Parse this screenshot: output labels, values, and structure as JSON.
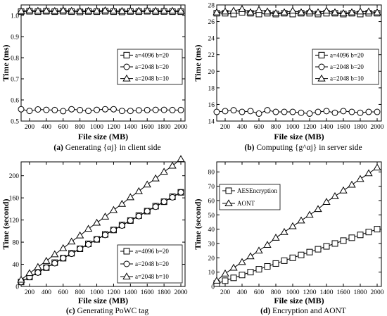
{
  "chart_data": [
    {
      "type": "line",
      "caption_letter": "(a)",
      "caption_text": "Generating {αj} in client side",
      "xlabel": "File size (MB)",
      "ylabel": "Time (ms)",
      "xlim": [
        100,
        2050
      ],
      "ylim": [
        0.5,
        1.05
      ],
      "xticks": [
        200,
        400,
        600,
        800,
        1000,
        1200,
        1400,
        1600,
        1800,
        2000
      ],
      "yticks": [
        0.5,
        0.6,
        0.7,
        0.8,
        0.9,
        1.0
      ],
      "yticklabels": [
        "0.5",
        "0.6",
        "0.7",
        "0.8",
        "0.9",
        "1.0"
      ],
      "legend_position": "center-right",
      "x": [
        100,
        200,
        300,
        400,
        500,
        600,
        700,
        800,
        900,
        1000,
        1100,
        1200,
        1300,
        1400,
        1500,
        1600,
        1700,
        1800,
        1900,
        2000
      ],
      "series": [
        {
          "name": "a=4096 b=20",
          "marker": "square",
          "values": [
            1.018,
            1.02,
            1.018,
            1.02,
            1.018,
            1.02,
            1.018,
            1.017,
            1.019,
            1.018,
            1.02,
            1.018,
            1.017,
            1.019,
            1.018,
            1.02,
            1.018,
            1.019,
            1.018,
            1.018
          ]
        },
        {
          "name": "a=2048 b=20",
          "marker": "circle",
          "values": [
            0.556,
            0.548,
            0.555,
            0.553,
            0.552,
            0.547,
            0.556,
            0.552,
            0.548,
            0.553,
            0.556,
            0.556,
            0.548,
            0.548,
            0.551,
            0.552,
            0.553,
            0.553,
            0.552,
            0.552
          ]
        },
        {
          "name": "a=2048 b=10",
          "marker": "triangle",
          "values": [
            1.021,
            1.024,
            1.022,
            1.023,
            1.021,
            1.024,
            1.022,
            1.021,
            1.022,
            1.022,
            1.024,
            1.022,
            1.021,
            1.022,
            1.022,
            1.023,
            1.022,
            1.022,
            1.022,
            1.022
          ]
        }
      ]
    },
    {
      "type": "line",
      "caption_letter": "(b)",
      "caption_text": "Computing {g^αj} in server side",
      "xlabel": "File size (MB)",
      "ylabel": "Time (ms)",
      "xlim": [
        100,
        2050
      ],
      "ylim": [
        14,
        28
      ],
      "xticks": [
        200,
        400,
        600,
        800,
        1000,
        1200,
        1400,
        1600,
        1800,
        2000
      ],
      "yticks": [
        14,
        16,
        18,
        20,
        22,
        24,
        26,
        28
      ],
      "yticklabels": [
        "14",
        "16",
        "18",
        "20",
        "22",
        "24",
        "26",
        "28"
      ],
      "legend_position": "center-right",
      "x": [
        100,
        200,
        300,
        400,
        500,
        600,
        700,
        800,
        900,
        1000,
        1100,
        1200,
        1300,
        1400,
        1500,
        1600,
        1700,
        1800,
        1900,
        2000
      ],
      "series": [
        {
          "name": "a=4096 b=20",
          "marker": "square",
          "values": [
            27.0,
            27.0,
            26.9,
            27.1,
            27.0,
            26.9,
            27.0,
            26.9,
            27.0,
            26.9,
            27.0,
            27.0,
            26.9,
            27.0,
            27.0,
            26.9,
            27.0,
            26.9,
            27.0,
            27.0
          ]
        },
        {
          "name": "a=2048 b=20",
          "marker": "circle",
          "values": [
            15.1,
            15.2,
            15.3,
            15.1,
            15.2,
            14.9,
            15.3,
            15.1,
            15.1,
            15.1,
            15.0,
            14.9,
            15.1,
            15.2,
            15.0,
            15.2,
            15.1,
            15.0,
            15.1,
            15.1
          ]
        },
        {
          "name": "a=2048 b=10",
          "marker": "triangle",
          "values": [
            27.1,
            27.2,
            27.3,
            27.5,
            27.1,
            27.4,
            27.2,
            27.0,
            27.1,
            27.3,
            27.1,
            27.2,
            27.1,
            27.3,
            27.1,
            27.0,
            27.1,
            27.2,
            27.2,
            27.1
          ]
        }
      ]
    },
    {
      "type": "line",
      "caption_letter": "(c)",
      "caption_text": "Generating PoWC tag",
      "xlabel": "File size (MB)",
      "ylabel": "Time (second)",
      "xlim": [
        100,
        2050
      ],
      "ylim": [
        0,
        225
      ],
      "xticks": [
        200,
        400,
        600,
        800,
        1000,
        1200,
        1400,
        1600,
        1800,
        2000
      ],
      "yticks": [
        0,
        40,
        80,
        120,
        160,
        200
      ],
      "yticklabels": [
        "0",
        "40",
        "80",
        "120",
        "160",
        "200"
      ],
      "legend_position": "bottom-right",
      "x": [
        100,
        200,
        300,
        400,
        500,
        600,
        700,
        800,
        900,
        1000,
        1100,
        1200,
        1300,
        1400,
        1500,
        1600,
        1700,
        1800,
        1900,
        2000
      ],
      "series": [
        {
          "name": "a=4096 b=20",
          "marker": "square",
          "values": [
            8,
            17,
            26,
            34,
            43,
            51,
            60,
            68,
            77,
            85,
            94,
            102,
            111,
            119,
            128,
            136,
            145,
            153,
            162,
            170
          ]
        },
        {
          "name": "a=2048 b=20",
          "marker": "circle",
          "values": [
            8,
            17,
            25,
            34,
            42,
            51,
            59,
            68,
            76,
            85,
            93,
            102,
            110,
            119,
            127,
            136,
            144,
            153,
            161,
            170
          ]
        },
        {
          "name": "a=2048 b=10",
          "marker": "triangle",
          "values": [
            12,
            24,
            35,
            46,
            58,
            69,
            81,
            92,
            104,
            115,
            126,
            138,
            149,
            161,
            172,
            184,
            195,
            207,
            218,
            230
          ]
        }
      ]
    },
    {
      "type": "line",
      "caption_letter": "(d)",
      "caption_text": "Encryption and AONT",
      "xlabel": "File size (MB)",
      "ylabel": "Time (second)",
      "xlim": [
        100,
        2050
      ],
      "ylim": [
        0,
        87
      ],
      "xticks": [
        200,
        400,
        600,
        800,
        1000,
        1200,
        1400,
        1600,
        1800,
        2000
      ],
      "yticks": [
        0,
        10,
        20,
        30,
        40,
        50,
        60,
        70,
        80
      ],
      "yticklabels": [
        "0",
        "10",
        "20",
        "30",
        "40",
        "50",
        "60",
        "70",
        "80"
      ],
      "legend_position": "top-left",
      "x": [
        100,
        200,
        300,
        400,
        500,
        600,
        700,
        800,
        900,
        1000,
        1100,
        1200,
        1300,
        1400,
        1500,
        1600,
        1700,
        1800,
        1900,
        2000
      ],
      "series": [
        {
          "name": "AESEncryption",
          "marker": "square",
          "values": [
            2,
            4,
            6,
            8,
            10,
            12,
            14,
            16,
            18,
            20,
            22,
            24,
            26,
            28,
            30,
            32,
            34,
            36,
            38,
            40
          ]
        },
        {
          "name": "AONT",
          "marker": "triangle",
          "values": [
            4,
            9,
            13,
            17,
            21,
            25,
            29,
            34,
            38,
            42,
            46,
            50,
            54,
            59,
            63,
            67,
            71,
            75,
            79,
            83
          ]
        }
      ]
    }
  ]
}
